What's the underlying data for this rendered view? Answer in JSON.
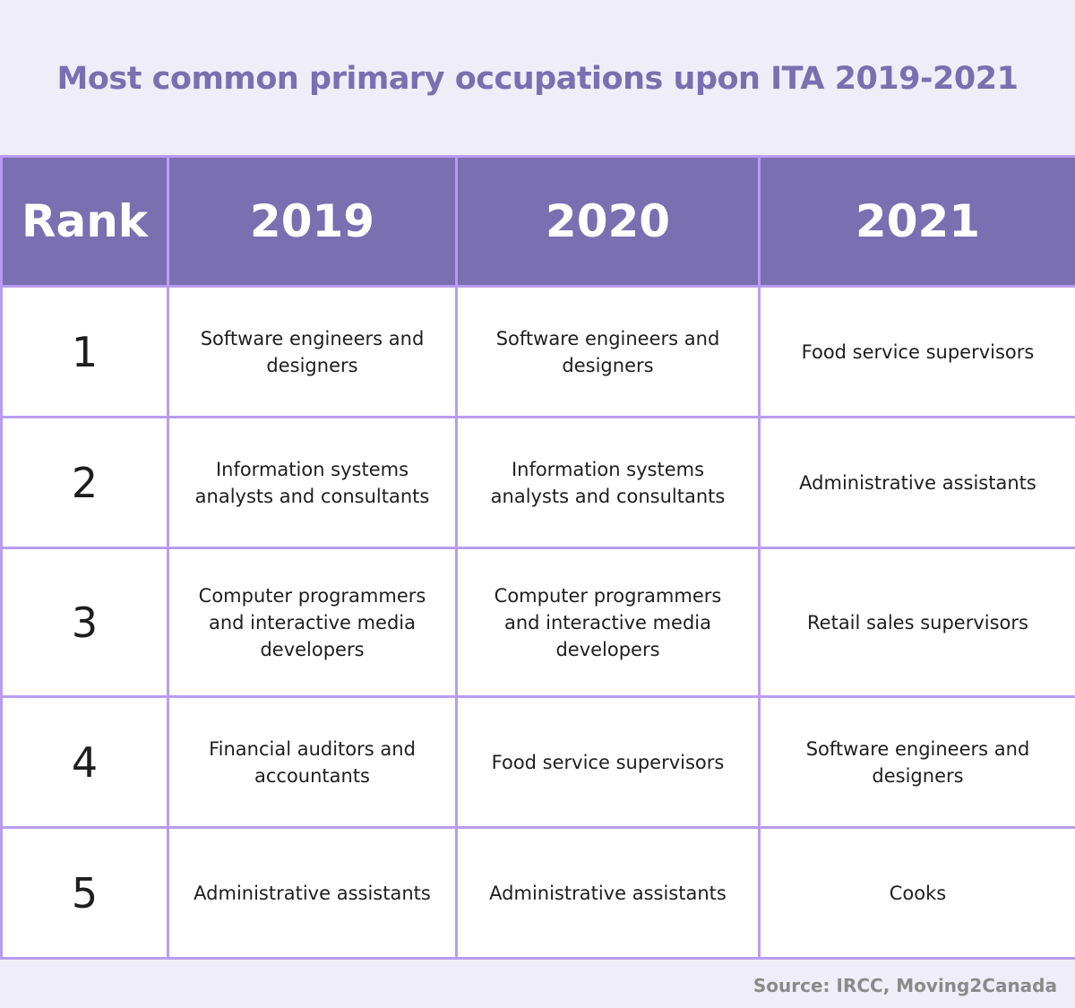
{
  "chart_data": {
    "type": "table",
    "title": "Most common primary occupations upon ITA 2019-2021",
    "columns": [
      "Rank",
      "2019",
      "2020",
      "2021"
    ],
    "rows": [
      {
        "rank": "1",
        "y2019": "Software engineers and designers",
        "y2020": "Software engineers and designers",
        "y2021": "Food service supervisors"
      },
      {
        "rank": "2",
        "y2019": "Information systems analysts and consultants",
        "y2020": "Information systems analysts and consultants",
        "y2021": "Administrative assistants"
      },
      {
        "rank": "3",
        "y2019": "Computer programmers and interactive media developers",
        "y2020": "Computer programmers and interactive media developers",
        "y2021": "Retail sales supervisors"
      },
      {
        "rank": "4",
        "y2019": "Financial auditors and accountants",
        "y2020": "Food service supervisors",
        "y2021": "Software engineers and designers"
      },
      {
        "rank": "5",
        "y2019": "Administrative assistants",
        "y2020": "Administrative assistants",
        "y2021": "Cooks"
      }
    ],
    "source": "Source: IRCC, Moving2Canada"
  },
  "colors": {
    "background": "#efedf7",
    "header": "#7a6fb0",
    "border": "#b99cf0",
    "title": "#7a6fb0"
  }
}
